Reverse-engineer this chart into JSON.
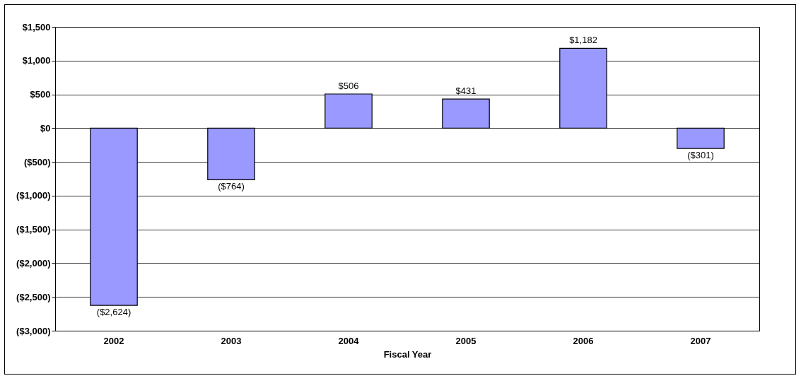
{
  "chart_data": {
    "type": "bar",
    "xlabel": "Fiscal Year",
    "categories": [
      "2002",
      "2003",
      "2004",
      "2005",
      "2006",
      "2007"
    ],
    "values": [
      -2624,
      -764,
      506,
      431,
      1182,
      -301
    ],
    "value_labels": [
      "($2,624)",
      "($764)",
      "$506",
      "$431",
      "$1,182",
      "($301)"
    ],
    "color": "#9999ff",
    "ylim": [
      -3000,
      1500
    ],
    "yticks": [
      {
        "value": -3000,
        "label": "($3,000)"
      },
      {
        "value": -2500,
        "label": "($2,500)"
      },
      {
        "value": -2000,
        "label": "($2,000)"
      },
      {
        "value": -1500,
        "label": "($1,500)"
      },
      {
        "value": -1000,
        "label": "($1,000)"
      },
      {
        "value": -500,
        "label": "($500)"
      },
      {
        "value": 0,
        "label": "$0"
      },
      {
        "value": 500,
        "label": "$500"
      },
      {
        "value": 1000,
        "label": "$1,000"
      },
      {
        "value": 1500,
        "label": "$1,500"
      }
    ],
    "grid": "y"
  }
}
